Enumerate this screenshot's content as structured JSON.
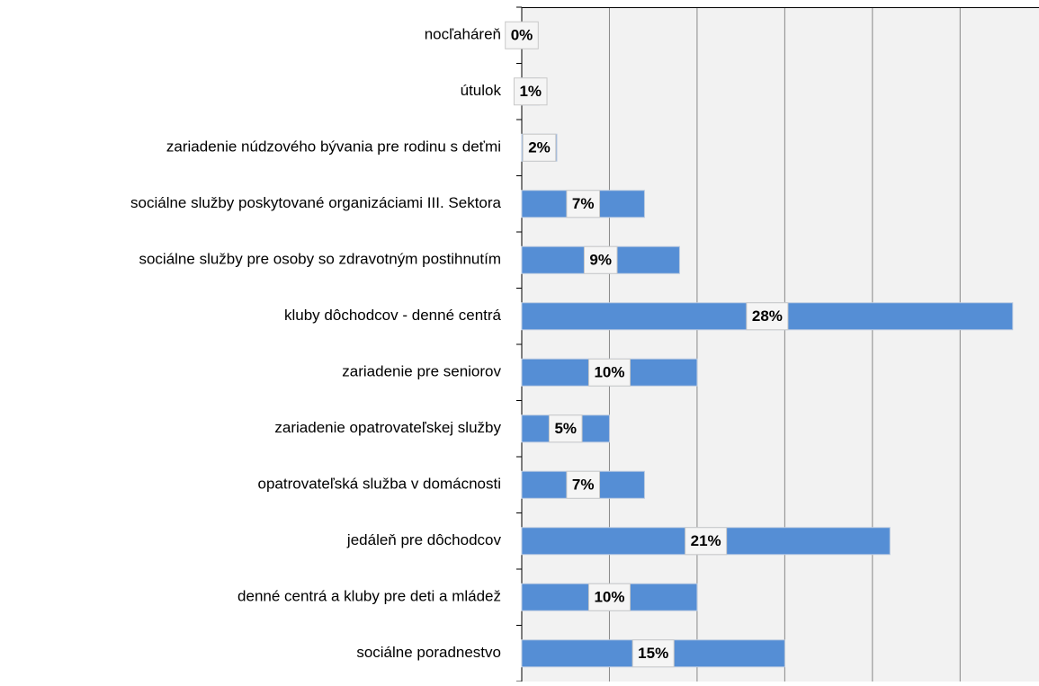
{
  "chart_data": {
    "type": "bar",
    "orientation": "horizontal",
    "categories": [
      "nocľaháreň",
      "útulok",
      "zariadenie núdzového bývania pre rodinu s deťmi",
      "sociálne služby poskytované organizáciami III. Sektora",
      "sociálne služby pre osoby so zdravotným postihnutím",
      "kluby dôchodcov - denné centrá",
      "zariadenie pre seniorov",
      "zariadenie opatrovateľskej  služby",
      "opatrovateľská služba v domácnosti",
      "jedáleň pre dôchodcov",
      "denné centrá a kluby pre deti a mládež",
      "sociálne poradnestvo"
    ],
    "values": [
      0,
      1,
      2,
      7,
      9,
      28,
      10,
      5,
      7,
      21,
      10,
      15
    ],
    "value_labels": [
      "0%",
      "1%",
      "2%",
      "7%",
      "9%",
      "28%",
      "10%",
      "5%",
      "7%",
      "21%",
      "10%",
      "15%"
    ],
    "color": "#558ed5",
    "xlim": [
      0,
      29.5
    ],
    "xticks": [
      0,
      5,
      10,
      15,
      20,
      25
    ],
    "grid": true
  }
}
